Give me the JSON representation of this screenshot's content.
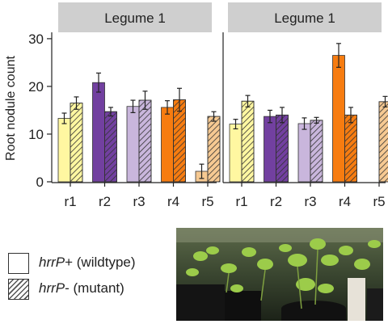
{
  "chart_data": {
    "type": "bar",
    "ylabel": "Root nodule count",
    "ylim": [
      0,
      31
    ],
    "yticks": [
      0,
      10,
      20,
      30
    ],
    "grid": false,
    "panels": [
      {
        "title": "Legume 1",
        "categories": [
          "r1",
          "r2",
          "r3",
          "r4",
          "r5"
        ],
        "series": [
          {
            "name": "hrrP+ (wildtype)",
            "values": [
              13.3,
              20.8,
              15.8,
              15.6,
              2.2
            ],
            "errors": [
              1.1,
              2.0,
              1.3,
              1.4,
              1.5
            ]
          },
          {
            "name": "hrrP- (mutant)",
            "values": [
              16.5,
              14.7,
              17.1,
              17.2,
              13.7
            ],
            "errors": [
              1.3,
              0.9,
              1.9,
              2.4,
              1.0
            ]
          }
        ]
      },
      {
        "title": "Legume 1",
        "categories": [
          "r1",
          "r2",
          "r3",
          "r4",
          "r5"
        ],
        "series": [
          {
            "name": "hrrP+ (wildtype)",
            "values": [
              12.1,
              13.7,
              12.2,
              26.5,
              null
            ],
            "errors": [
              1.0,
              1.3,
              1.2,
              2.5,
              null
            ]
          },
          {
            "name": "hrrP- (mutant)",
            "values": [
              16.9,
              14.0,
              12.9,
              14.0,
              16.8
            ],
            "errors": [
              1.2,
              1.6,
              0.6,
              1.6,
              1.1
            ]
          }
        ]
      }
    ],
    "category_colors": {
      "r1": "#fff7a1",
      "r2": "#7240a0",
      "r3": "#c9b6dc",
      "r4": "#f77c10",
      "r5": "#f6c992"
    },
    "panel_header_color": "#cfcfcf"
  },
  "legend": {
    "items": [
      {
        "emph": "hrrP",
        "rest": "+ (wildtype)",
        "hatched": false
      },
      {
        "emph": "hrrP",
        "rest": "- (mutant)",
        "hatched": true
      }
    ]
  },
  "photo": {
    "icon": "plant-seedlings-photo"
  }
}
